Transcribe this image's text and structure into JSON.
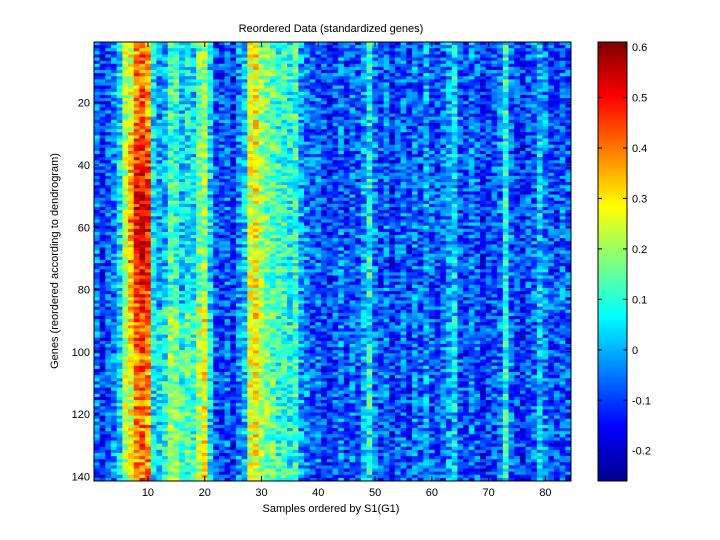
{
  "chart_data": {
    "type": "heatmap",
    "title": "Reordered Data (standardized genes)",
    "xlabel": "Samples ordered by S1(G1)",
    "ylabel": "Genes (reordered according to dendrogram)",
    "n_samples": 84,
    "n_genes": 141,
    "xlim": [
      0.5,
      84.5
    ],
    "ylim": [
      0.5,
      141.5
    ],
    "y_direction": "reverse",
    "x_ticks": [
      10,
      20,
      30,
      40,
      50,
      60,
      70,
      80
    ],
    "y_ticks": [
      20,
      40,
      60,
      80,
      100,
      120,
      140
    ],
    "colormap": "jet",
    "clim": [
      -0.26,
      0.61
    ],
    "colorbar_ticks": [
      -0.2,
      -0.1,
      0,
      0.1,
      0.2,
      0.3,
      0.4,
      0.5,
      0.6
    ],
    "column_profile": [
      [
        1,
        -0.05
      ],
      [
        2,
        -0.12
      ],
      [
        3,
        -0.08
      ],
      [
        4,
        -0.04
      ],
      [
        5,
        0.05
      ],
      [
        6,
        0.22
      ],
      [
        7,
        0.3
      ],
      [
        8,
        0.42
      ],
      [
        9,
        0.45
      ],
      [
        10,
        0.41
      ],
      [
        11,
        0.05
      ],
      [
        12,
        -0.02
      ],
      [
        13,
        0.0
      ],
      [
        14,
        0.12
      ],
      [
        15,
        0.1
      ],
      [
        16,
        0.02
      ],
      [
        17,
        0.06
      ],
      [
        18,
        0.03
      ],
      [
        19,
        0.15
      ],
      [
        20,
        0.2
      ],
      [
        21,
        0.04
      ],
      [
        22,
        -0.08
      ],
      [
        23,
        -0.1
      ],
      [
        24,
        -0.06
      ],
      [
        25,
        -0.12
      ],
      [
        26,
        -0.04
      ],
      [
        27,
        0.02
      ],
      [
        28,
        0.25
      ],
      [
        29,
        0.28
      ],
      [
        30,
        0.2
      ],
      [
        31,
        0.16
      ],
      [
        32,
        0.14
      ],
      [
        33,
        0.1
      ],
      [
        34,
        0.12
      ],
      [
        35,
        0.08
      ],
      [
        36,
        0.12
      ],
      [
        37,
        -0.02
      ],
      [
        38,
        -0.05
      ],
      [
        39,
        -0.08
      ],
      [
        40,
        -0.06
      ],
      [
        41,
        -0.1
      ],
      [
        42,
        -0.12
      ],
      [
        43,
        -0.08
      ],
      [
        44,
        -0.05
      ],
      [
        45,
        -0.1
      ],
      [
        46,
        -0.06
      ],
      [
        47,
        -0.08
      ],
      [
        48,
        -0.02
      ],
      [
        49,
        0.08
      ],
      [
        50,
        -0.04
      ],
      [
        51,
        -0.1
      ],
      [
        52,
        -0.05
      ],
      [
        53,
        -0.12
      ],
      [
        54,
        -0.08
      ],
      [
        55,
        -0.06
      ],
      [
        56,
        -0.1
      ],
      [
        57,
        -0.04
      ],
      [
        58,
        -0.08
      ],
      [
        59,
        -0.02
      ],
      [
        60,
        -0.08
      ],
      [
        61,
        -0.1
      ],
      [
        62,
        -0.06
      ],
      [
        63,
        -0.02
      ],
      [
        64,
        0.04
      ],
      [
        65,
        -0.08
      ],
      [
        66,
        -0.1
      ],
      [
        67,
        -0.05
      ],
      [
        68,
        -0.08
      ],
      [
        69,
        -0.12
      ],
      [
        70,
        -0.1
      ],
      [
        71,
        -0.08
      ],
      [
        72,
        -0.05
      ],
      [
        73,
        0.1
      ],
      [
        74,
        -0.06
      ],
      [
        75,
        -0.1
      ],
      [
        76,
        -0.12
      ],
      [
        77,
        -0.08
      ],
      [
        78,
        -0.06
      ],
      [
        79,
        0.02
      ],
      [
        80,
        -0.04
      ],
      [
        81,
        -0.08
      ],
      [
        82,
        -0.1
      ],
      [
        83,
        -0.06
      ],
      [
        84,
        -0.08
      ]
    ]
  }
}
